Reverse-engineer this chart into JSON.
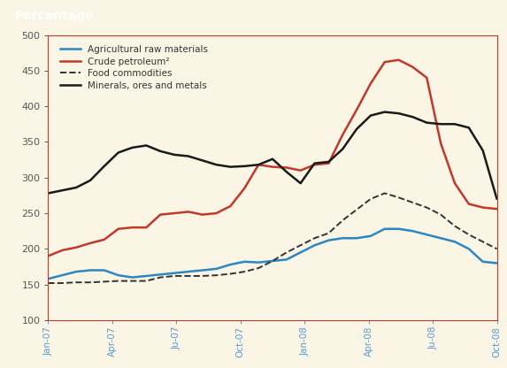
{
  "background_color": "#faf5e4",
  "title": "Percentage",
  "title_bg_color": "#b31b35",
  "title_text_color": "#ffffff",
  "ylim": [
    100,
    500
  ],
  "yticks": [
    100,
    150,
    200,
    250,
    300,
    350,
    400,
    450,
    500
  ],
  "xtick_labels": [
    "Jan-07",
    "Apr-07",
    "Ju-07",
    "Oct-07",
    "Jan-08",
    "Apr-08",
    "Ju-08",
    "Oct-08"
  ],
  "spine_color": "#c0392b",
  "series": {
    "agricultural": {
      "label": "Agricultural raw materials",
      "color": "#2e86c1",
      "linestyle": "solid",
      "linewidth": 1.8,
      "values": [
        158,
        163,
        168,
        170,
        170,
        163,
        160,
        162,
        164,
        166,
        168,
        170,
        172,
        178,
        182,
        181,
        183,
        185,
        195,
        205,
        212,
        215,
        215,
        218,
        228,
        228,
        225,
        220,
        215,
        210,
        200,
        182,
        180
      ]
    },
    "petroleum": {
      "label": "Crude petroleum²",
      "color": "#c0392b",
      "linestyle": "solid",
      "linewidth": 1.8,
      "values": [
        190,
        198,
        202,
        208,
        213,
        228,
        230,
        230,
        248,
        250,
        252,
        248,
        250,
        260,
        285,
        318,
        315,
        314,
        310,
        318,
        320,
        360,
        395,
        432,
        462,
        465,
        455,
        440,
        348,
        292,
        263,
        258,
        256
      ]
    },
    "food": {
      "label": "Food commodities",
      "color": "#333333",
      "linestyle": "dashed",
      "linewidth": 1.4,
      "values": [
        152,
        152,
        153,
        153,
        154,
        155,
        155,
        155,
        160,
        162,
        162,
        162,
        163,
        165,
        168,
        173,
        183,
        195,
        205,
        215,
        222,
        240,
        255,
        270,
        278,
        272,
        265,
        258,
        248,
        232,
        220,
        210,
        200
      ]
    },
    "minerals": {
      "label": "Minerals, ores and metals",
      "color": "#1a1a1a",
      "linestyle": "solid",
      "linewidth": 1.8,
      "values": [
        278,
        282,
        286,
        296,
        316,
        335,
        342,
        345,
        337,
        332,
        330,
        324,
        318,
        315,
        316,
        318,
        326,
        308,
        292,
        320,
        322,
        340,
        368,
        387,
        392,
        390,
        385,
        377,
        375,
        375,
        370,
        338,
        270
      ]
    }
  }
}
